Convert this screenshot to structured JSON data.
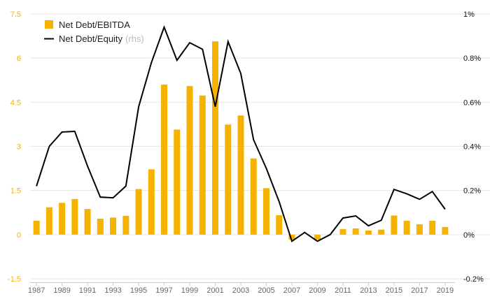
{
  "chart_data": {
    "type": "bar",
    "categories": [
      "1987",
      "1988",
      "1989",
      "1990",
      "1991",
      "1992",
      "1993",
      "1994",
      "1995",
      "1996",
      "1997",
      "1998",
      "1999",
      "2000",
      "2001",
      "2002",
      "2003",
      "2004",
      "2005",
      "2006",
      "2007",
      "2008",
      "2009",
      "2010",
      "2011",
      "2012",
      "2013",
      "2014",
      "2015",
      "2016",
      "2017",
      "2018",
      "2019"
    ],
    "x_tick_labels": [
      "1987",
      "1989",
      "1991",
      "1993",
      "1995",
      "1997",
      "1999",
      "2001",
      "2003",
      "2005",
      "2007",
      "2009",
      "2011",
      "2013",
      "2015",
      "2017",
      "2019"
    ],
    "series": [
      {
        "name": "Net Debt/EBITDA",
        "type": "bar",
        "axis": "left",
        "color": "#f5b300",
        "values": [
          0.47,
          0.93,
          1.08,
          1.21,
          0.87,
          0.54,
          0.58,
          0.64,
          1.55,
          2.22,
          5.1,
          3.57,
          5.05,
          4.73,
          6.57,
          3.74,
          4.05,
          2.59,
          1.58,
          0.66,
          -0.17,
          0.0,
          -0.17,
          0.0,
          0.19,
          0.21,
          0.14,
          0.17,
          0.65,
          0.47,
          0.35,
          0.47,
          0.26
        ]
      },
      {
        "name": "Net Debt/Equity",
        "name_suffix": "(rhs)",
        "type": "line",
        "axis": "right",
        "color": "#000000",
        "values": [
          0.22,
          0.4,
          0.465,
          0.468,
          0.31,
          0.17,
          0.167,
          0.22,
          0.58,
          0.78,
          0.94,
          0.79,
          0.87,
          0.84,
          0.58,
          0.875,
          0.73,
          0.43,
          0.3,
          0.15,
          -0.03,
          0.01,
          -0.03,
          0.0,
          0.075,
          0.085,
          0.04,
          0.065,
          0.205,
          0.185,
          0.16,
          0.195,
          0.115
        ]
      }
    ],
    "y_left": {
      "min": -1.5,
      "max": 7.5,
      "ticks": [
        -1.5,
        0,
        1.5,
        3,
        4.5,
        6,
        7.5
      ],
      "tick_labels": [
        "-1.5",
        "0",
        "1.5",
        "3",
        "4.5",
        "6",
        "7.5"
      ],
      "tick_color": "#f5b300"
    },
    "y_right": {
      "min": -0.2,
      "max": 1.0,
      "ticks": [
        -0.2,
        0,
        0.2,
        0.4,
        0.6,
        0.8,
        1.0
      ],
      "tick_labels": [
        "-0.2%",
        "0%",
        "0.2%",
        "0.4%",
        "0.6%",
        "0.8%",
        "1%"
      ]
    },
    "grid": true,
    "legend_position": "top-left"
  }
}
